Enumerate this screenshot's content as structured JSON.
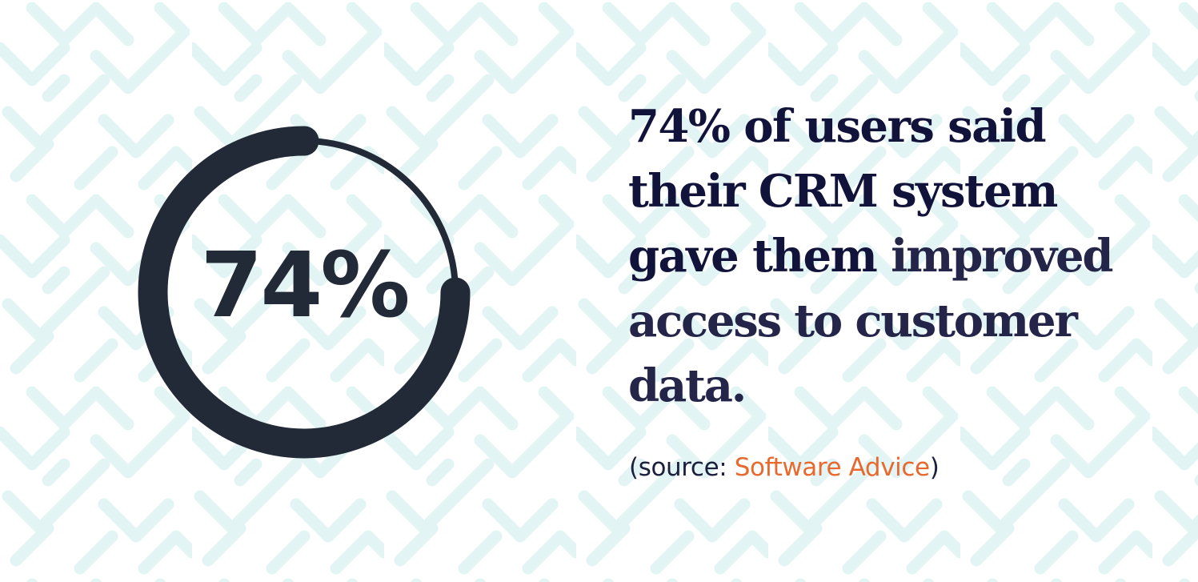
{
  "colors": {
    "background": "#ffffff",
    "pattern": "#e2f5f4",
    "ring": "#232a37",
    "text": "#12133a",
    "accent": "#e8692e"
  },
  "ring": {
    "value": 74,
    "value_label": "74%",
    "arc_degrees": 270
  },
  "statement": {
    "lines": [
      {
        "heavy": "74% of users said",
        "light": ""
      },
      {
        "heavy": "their CRM system",
        "light": ""
      },
      {
        "heavy": "gave them ",
        "light": "improved"
      },
      {
        "heavy": "",
        "light": "access to customer"
      },
      {
        "heavy": "",
        "light": "data."
      }
    ]
  },
  "source": {
    "prefix": "(source: ",
    "link_text": "Software Advice",
    "suffix": ")"
  }
}
